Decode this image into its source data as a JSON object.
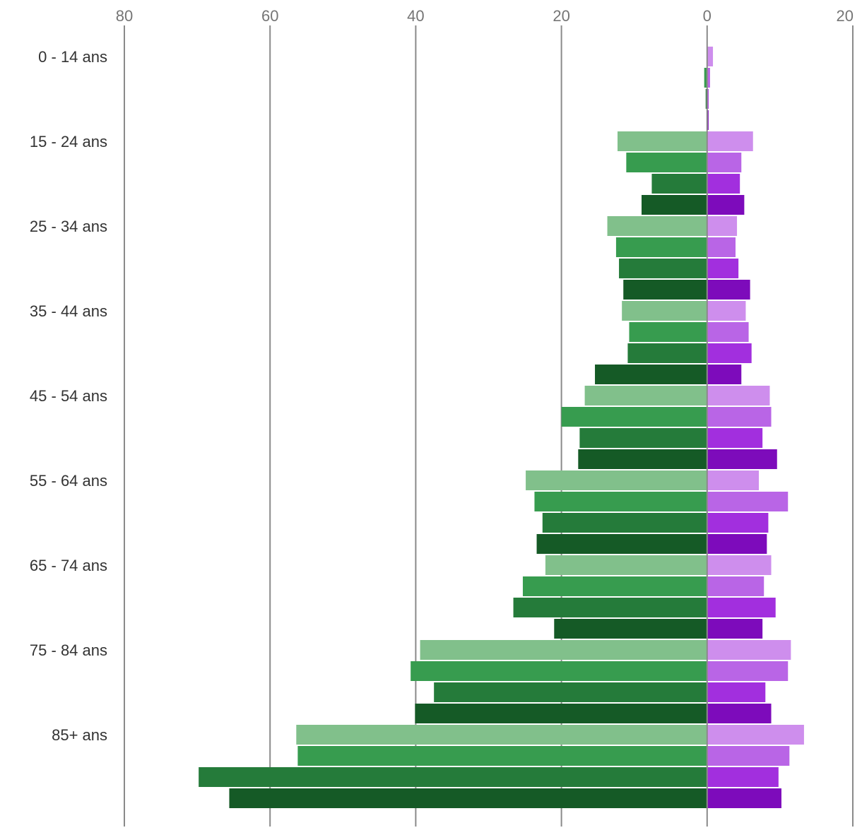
{
  "chart_data": {
    "type": "bar",
    "orientation": "horizontal",
    "layout": "population-pyramid",
    "title": "",
    "xlabel": "",
    "ylabel": "",
    "grid": true,
    "legend": "none",
    "xlim": [
      -80,
      20
    ],
    "x_ticks": [
      -80,
      -60,
      -40,
      -20,
      0,
      20
    ],
    "x_tick_labels": [
      "80",
      "60",
      "40",
      "20",
      "0",
      "20"
    ],
    "categories": [
      "0 - 14 ans",
      "15 - 24 ans",
      "25 - 34 ans",
      "35 - 44 ans",
      "45 - 54 ans",
      "55 - 64 ans",
      "65 - 74 ans",
      "75 - 84 ans",
      "85+ ans"
    ],
    "bars_per_category": 4,
    "left_series": {
      "side": "left",
      "colors": [
        "#81c08b",
        "#379c4f",
        "#257b3a",
        "#155a26"
      ],
      "values": [
        [
          0,
          0.4,
          0.2,
          0
        ],
        [
          12.3,
          11.1,
          7.6,
          9
        ],
        [
          13.7,
          12.5,
          12.1,
          11.5
        ],
        [
          11.7,
          10.7,
          10.9,
          15.4
        ],
        [
          16.8,
          20,
          17.5,
          17.7
        ],
        [
          24.9,
          23.7,
          22.6,
          23.4
        ],
        [
          22.2,
          25.3,
          26.6,
          21
        ],
        [
          39.4,
          40.7,
          37.5,
          40.1
        ],
        [
          56.4,
          56.2,
          69.8,
          65.6
        ]
      ]
    },
    "right_series": {
      "side": "right",
      "colors": [
        "#ce8eed",
        "#b965e6",
        "#a22fde",
        "#7d0bbb"
      ],
      "values": [
        [
          0.8,
          0.4,
          0.2,
          0.2
        ],
        [
          6.3,
          4.7,
          4.5,
          5.1
        ],
        [
          4.1,
          3.9,
          4.3,
          5.9
        ],
        [
          5.3,
          5.7,
          6.1,
          4.7
        ],
        [
          8.6,
          8.8,
          7.6,
          9.6
        ],
        [
          7.1,
          11.1,
          8.4,
          8.2
        ],
        [
          8.8,
          7.8,
          9.4,
          7.6
        ],
        [
          11.5,
          11.1,
          8,
          8.8
        ],
        [
          13.3,
          11.3,
          9.8,
          10.2
        ]
      ]
    }
  }
}
